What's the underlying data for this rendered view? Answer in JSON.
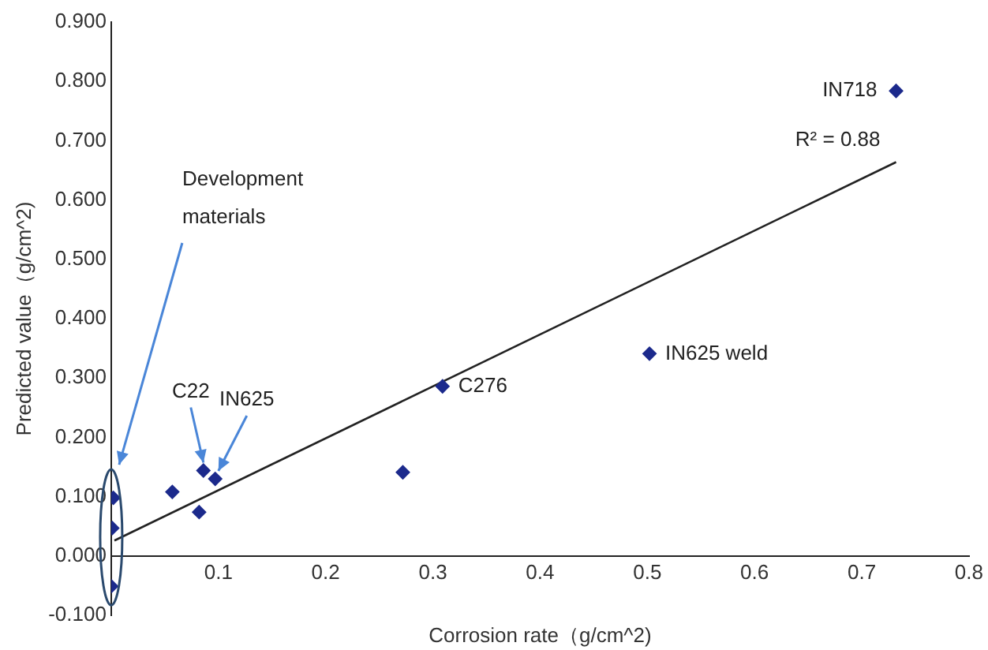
{
  "chart_data": {
    "type": "scatter",
    "xlabel": "Corrosion rate（g/cm^2)",
    "ylabel": "Predicted value（g/cm^2)",
    "xlim": [
      0,
      0.8
    ],
    "xticks": [
      0.1,
      0.2,
      0.3,
      0.4,
      0.5,
      0.6,
      0.7,
      0.8
    ],
    "ylim": [
      -0.1,
      0.9
    ],
    "yticks": [
      {
        "value": -0.1,
        "label": "-0.100"
      },
      {
        "value": 0,
        "label": "0.000"
      },
      {
        "value": 0.1,
        "label": "0.100"
      },
      {
        "value": 0.2,
        "label": "0.200"
      },
      {
        "value": 0.3,
        "label": "0.300"
      },
      {
        "value": 0.4,
        "label": "0.400"
      },
      {
        "value": 0.5,
        "label": "0.500"
      },
      {
        "value": 0.6,
        "label": "0.600"
      },
      {
        "value": 0.7,
        "label": "0.700"
      },
      {
        "value": 0.8,
        "label": "0.800"
      },
      {
        "value": 0.9,
        "label": "0.900"
      }
    ],
    "grid": false,
    "legend": false,
    "series": [
      {
        "color": "#1c2a8c",
        "marker": "diamond",
        "x": [
          0.732,
          0.502,
          0.309,
          0.272,
          0.086,
          0.097,
          0.057,
          0.082,
          0.002,
          0.001,
          0.0
        ],
        "values": [
          0.784,
          0.341,
          0.286,
          0.141,
          0.144,
          0.13,
          0.108,
          0.074,
          0.098,
          0.047,
          -0.051
        ]
      },
      {
        "type": "line",
        "marker": "none",
        "color": "#222222",
        "x": [
          0.003,
          0.732
        ],
        "values": [
          0.026,
          0.664
        ]
      }
    ],
    "annotations": [
      {
        "text": "IN718",
        "x": 0.732,
        "y": 0.784
      },
      {
        "text": "R² = 0.88",
        "x": 0.732,
        "y": 0.664
      },
      {
        "text": "IN625 weld",
        "x": 0.502,
        "y": 0.341
      },
      {
        "text": "C276",
        "x": 0.309,
        "y": 0.286
      },
      {
        "text": "C22",
        "x": 0.086,
        "y": 0.144
      },
      {
        "text": "IN625",
        "x": 0.097,
        "y": 0.13
      },
      "Development materials"
    ]
  }
}
